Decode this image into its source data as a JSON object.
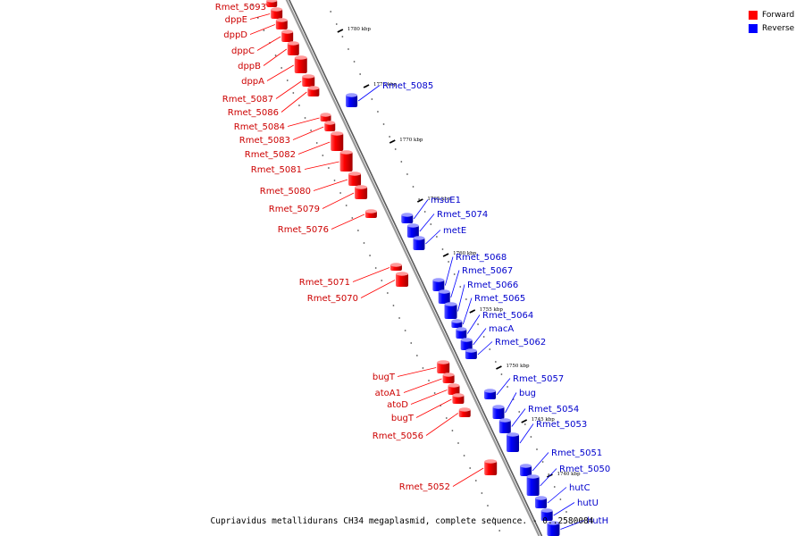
{
  "legend": [
    {
      "label": "Forward",
      "color": "#ff0000"
    },
    {
      "label": "Reverse",
      "color": "#0000ff"
    }
  ],
  "caption": "Cupriavidus metallidurans CH34 megaplasmid, complete sequence. - 0..2580084",
  "colors": {
    "forward": "#ff0000",
    "reverse": "#0000ff",
    "backbone": "#808080",
    "tick": "#000000"
  },
  "ticks": [
    "1780 kbp",
    "1775 kbp",
    "1770 kbp",
    "1765 kbp",
    "1760 kbp",
    "1755 kbp",
    "1750 kbp",
    "1745 kbp",
    "1740 kbp"
  ],
  "forward_genes": [
    "Rmet_5093",
    "dppE",
    "dppD",
    "dppC",
    "dppB",
    "dppA",
    "Rmet_5087",
    "Rmet_5086",
    "Rmet_5084",
    "Rmet_5083",
    "Rmet_5082",
    "Rmet_5081",
    "Rmet_5080",
    "Rmet_5079",
    "Rmet_5076",
    "Rmet_5071",
    "Rmet_5070",
    "bugT",
    "atoA1",
    "atoD",
    "bugT",
    "Rmet_5056",
    "Rmet_5052"
  ],
  "reverse_genes": [
    "Rmet_5085",
    "msuE1",
    "Rmet_5074",
    "metE",
    "Rmet_5068",
    "Rmet_5067",
    "Rmet_5066",
    "Rmet_5065",
    "Rmet_5064",
    "macA",
    "Rmet_5062",
    "Rmet_5057",
    "bug",
    "Rmet_5054",
    "Rmet_5053",
    "Rmet_5051",
    "Rmet_5050",
    "hutC",
    "hutU",
    "hutH"
  ]
}
